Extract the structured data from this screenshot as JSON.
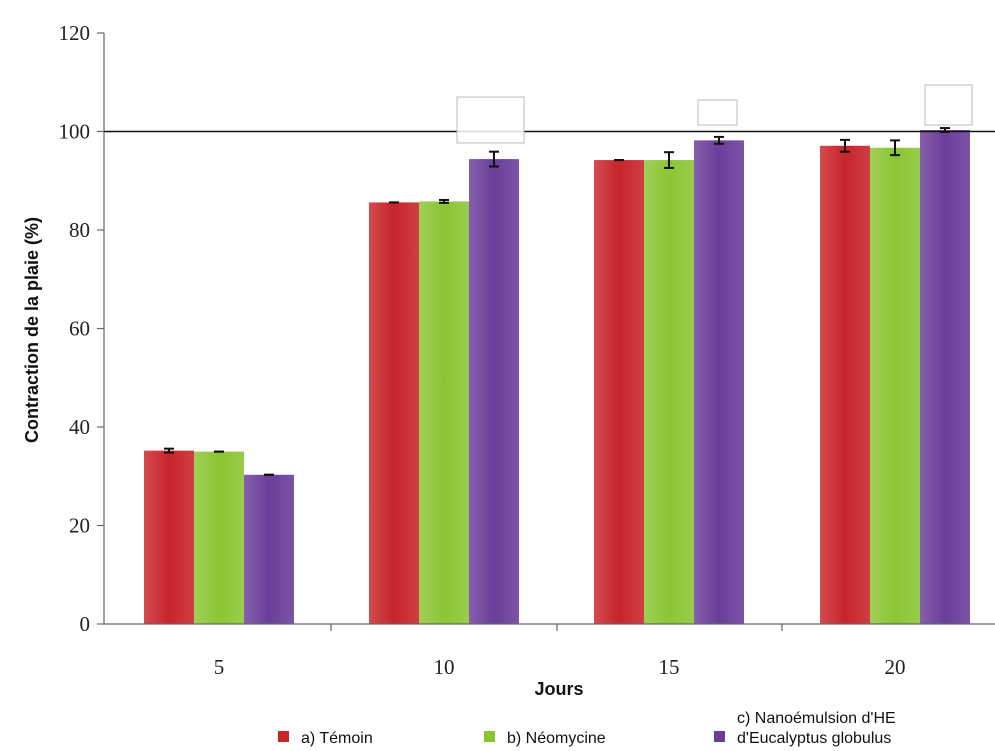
{
  "chart_data": {
    "type": "bar",
    "categories": [
      "5",
      "10",
      "15",
      "20"
    ],
    "series": [
      {
        "name": "a) Témoin",
        "values": [
          35.2,
          85.6,
          94.2,
          97.1
        ],
        "errors": [
          0.4,
          0,
          0,
          1.2
        ],
        "color": "#c8242a"
      },
      {
        "name": "b) Néomycine",
        "values": [
          35.0,
          85.8,
          94.2,
          96.7
        ],
        "errors": [
          0,
          0.3,
          1.6,
          1.5
        ],
        "color": "#8bc534"
      },
      {
        "name": "c) Nanoémulsion d'HE d'Eucalyptus globulus",
        "name_lines": [
          "c) Nanoémulsion d'HE",
          "d'Eucalyptus globulus"
        ],
        "values": [
          30.3,
          94.4,
          98.2,
          100.3
        ],
        "errors": [
          0,
          1.5,
          0.7,
          0.4
        ],
        "color": "#6a3d9a"
      }
    ],
    "xlabel": "Jours",
    "ylabel": "Contraction de la plaie (%)",
    "ylim": [
      0,
      120
    ],
    "yticks": [
      0,
      20,
      40,
      60,
      80,
      100,
      120
    ],
    "reference_line": 100,
    "grid": false,
    "legend_position": "bottom"
  }
}
